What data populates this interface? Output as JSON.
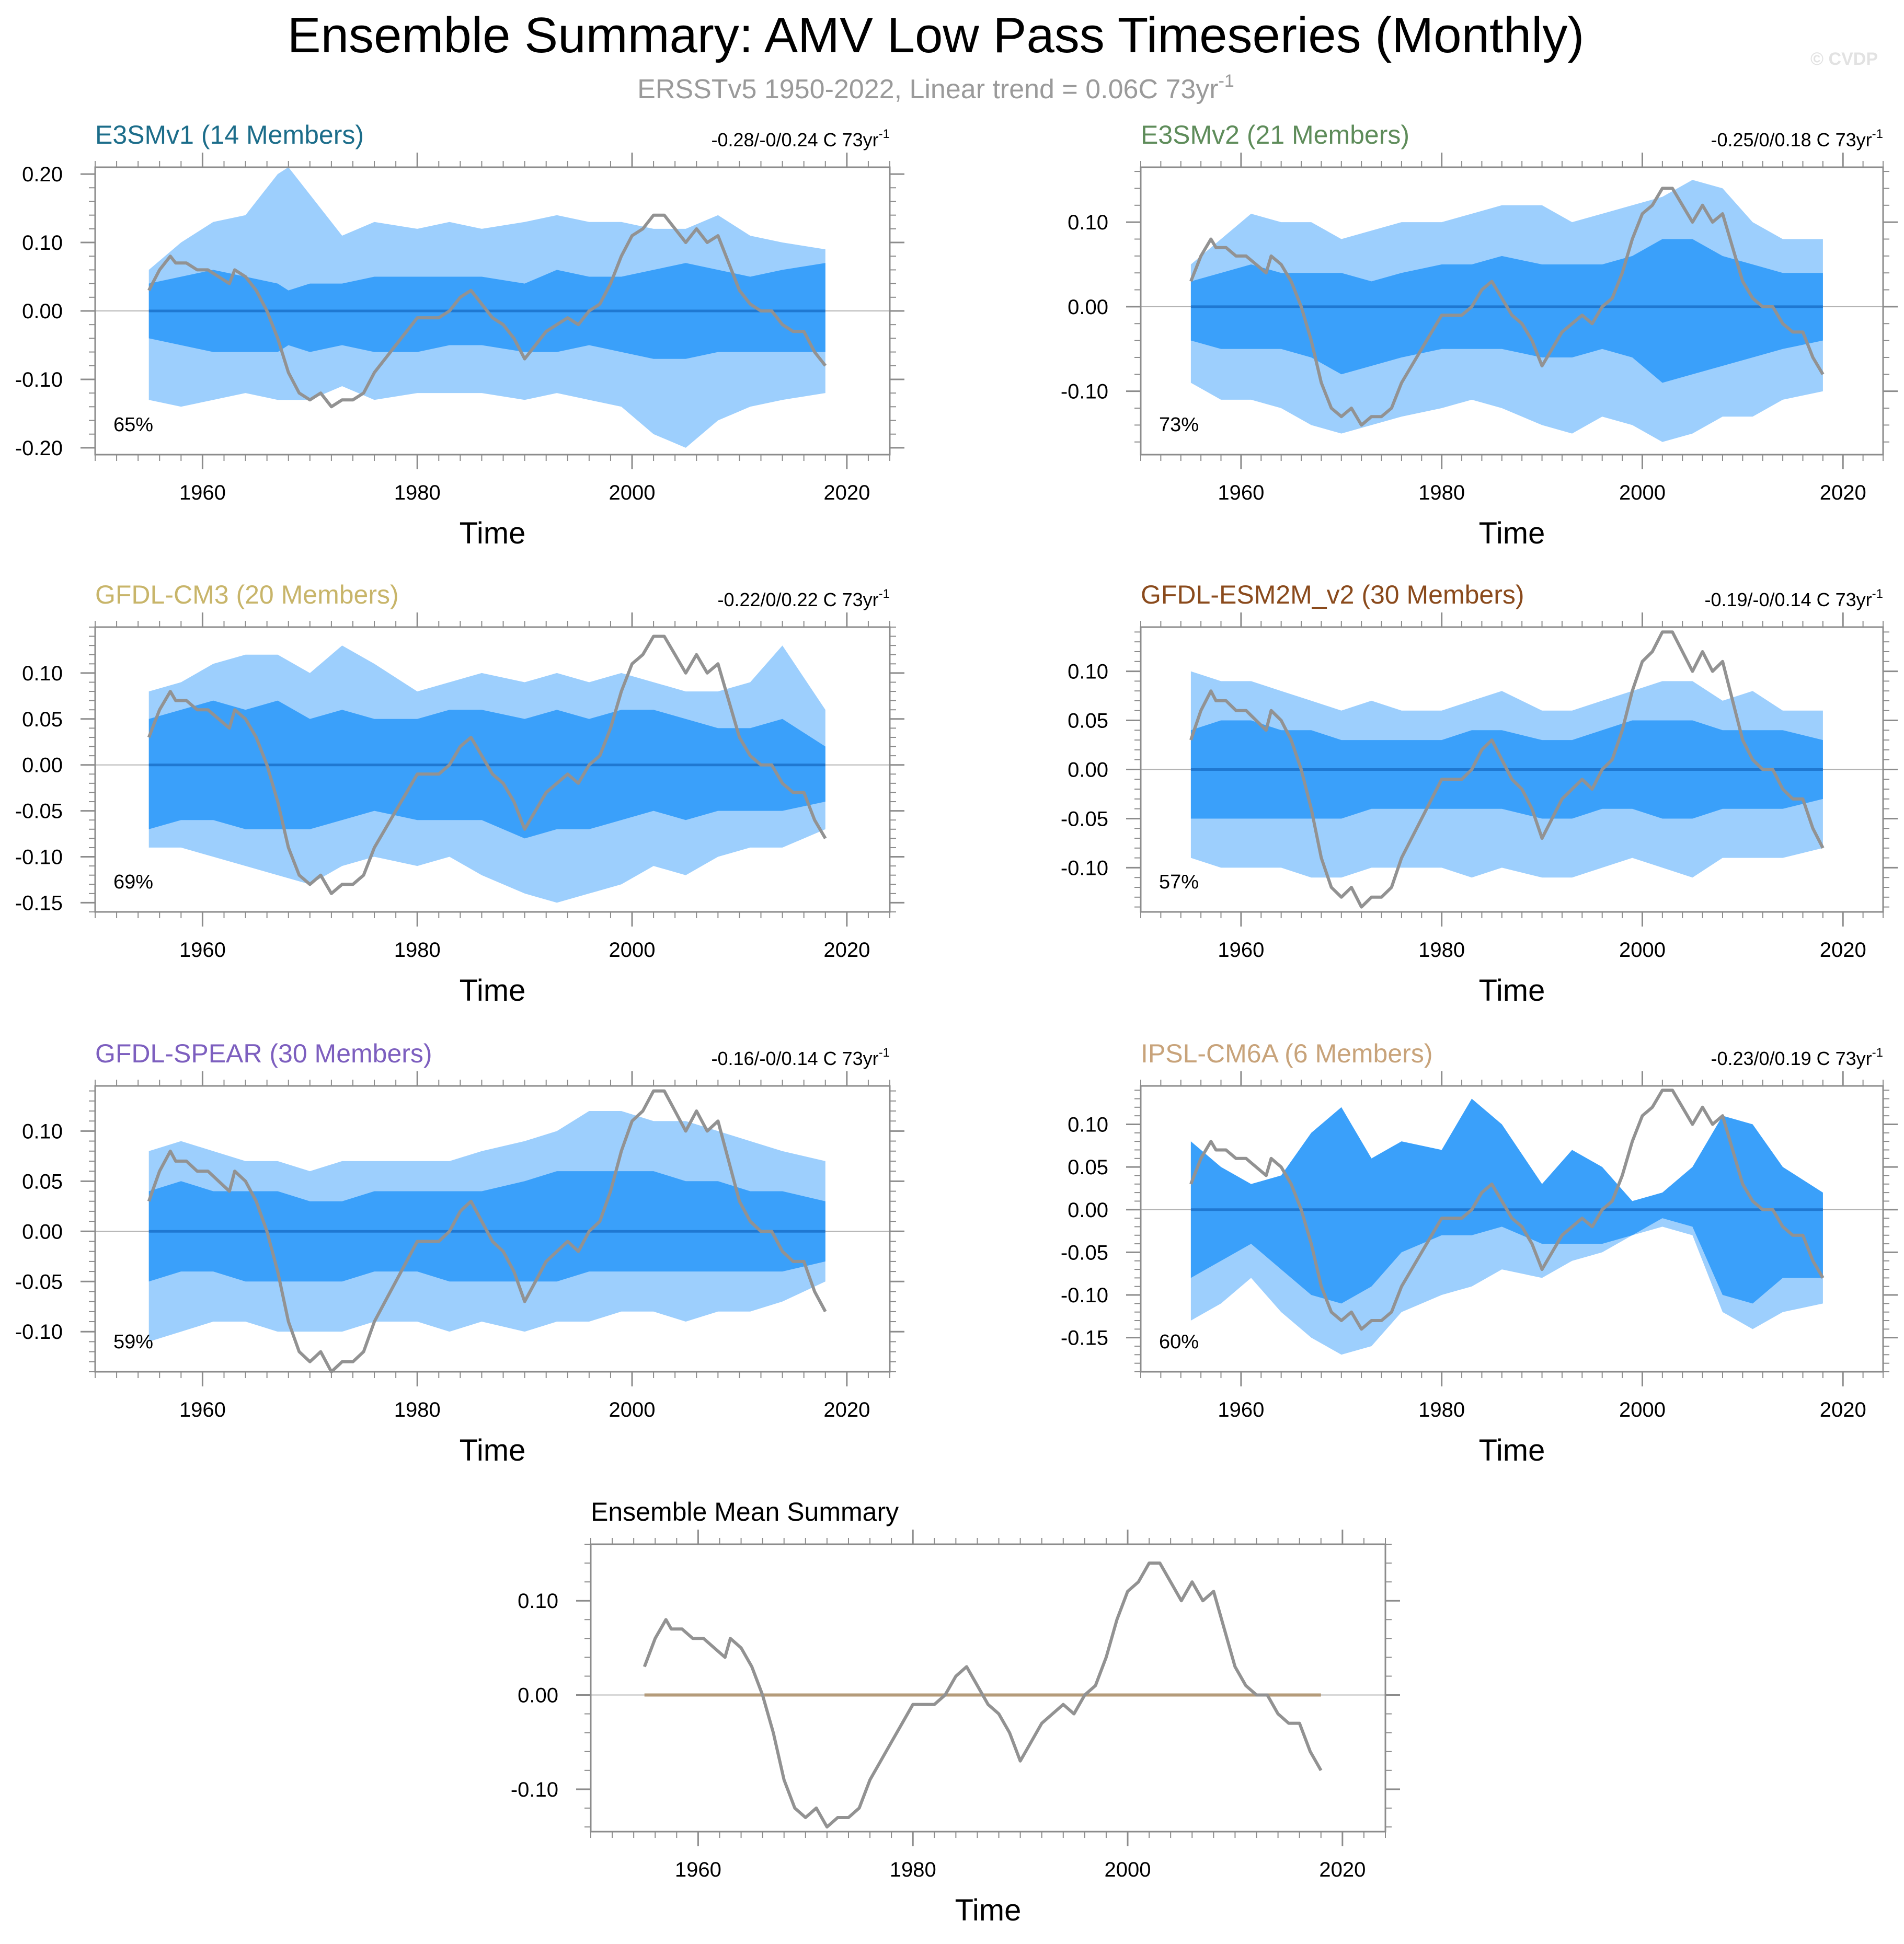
{
  "header": {
    "title": "Ensemble Summary: AMV Low Pass Timeseries (Monthly)",
    "subtitle_main": "ERSSTv5 1950-2022, Linear trend = 0.06C 73yr",
    "subtitle_sup": "-1",
    "watermark": "© CVDP"
  },
  "colors": {
    "band_outer": "#9dcffd",
    "band_inner": "#3aa0fa",
    "mean_line": "#1f78d1",
    "obs_line": "#929292",
    "summary_mean_line": "#b49b7a",
    "axis": "#8c8c8c",
    "zero_line": "#b4b4b4"
  },
  "chart_data": [
    {
      "type": "area",
      "id": "e3smv1",
      "title": "E3SMv1 (14 Members)",
      "title_color": "#1c6d8a",
      "trend_main": "-0.28/-0/0.24 C 73yr",
      "trend_sup": "-1",
      "percent": "65%",
      "xlabel": "Time",
      "xlim": [
        1950,
        2024
      ],
      "xticks": [
        "1960",
        "1980",
        "2000",
        "2020"
      ],
      "ylim": [
        -0.21,
        0.21
      ],
      "yticks": [
        "0.20",
        "0.10",
        "0.00",
        "-0.10",
        "-0.20"
      ],
      "ytick_values": [
        0.2,
        0.1,
        0.0,
        -0.1,
        -0.2
      ],
      "spread": {
        "x": [
          1955,
          1958,
          1961,
          1964,
          1967,
          1968,
          1970,
          1973,
          1976,
          1980,
          1983,
          1986,
          1990,
          1993,
          1996,
          1999,
          2002,
          2005,
          2008,
          2011,
          2014,
          2018
        ],
        "outer_upper": [
          0.06,
          0.1,
          0.13,
          0.14,
          0.2,
          0.21,
          0.17,
          0.11,
          0.13,
          0.12,
          0.13,
          0.12,
          0.13,
          0.14,
          0.13,
          0.13,
          0.12,
          0.12,
          0.14,
          0.11,
          0.1,
          0.09
        ],
        "inner_upper": [
          0.04,
          0.05,
          0.06,
          0.05,
          0.04,
          0.03,
          0.04,
          0.04,
          0.05,
          0.05,
          0.05,
          0.05,
          0.04,
          0.06,
          0.05,
          0.05,
          0.06,
          0.07,
          0.06,
          0.05,
          0.06,
          0.07
        ],
        "inner_lower": [
          -0.04,
          -0.05,
          -0.06,
          -0.06,
          -0.06,
          -0.05,
          -0.06,
          -0.05,
          -0.06,
          -0.06,
          -0.05,
          -0.05,
          -0.06,
          -0.06,
          -0.05,
          -0.06,
          -0.07,
          -0.07,
          -0.06,
          -0.06,
          -0.06,
          -0.06
        ],
        "outer_lower": [
          -0.13,
          -0.14,
          -0.13,
          -0.12,
          -0.13,
          -0.13,
          -0.13,
          -0.11,
          -0.13,
          -0.12,
          -0.12,
          -0.12,
          -0.13,
          -0.12,
          -0.13,
          -0.14,
          -0.18,
          -0.2,
          -0.16,
          -0.14,
          -0.13,
          -0.12
        ]
      }
    },
    {
      "type": "area",
      "id": "e3smv2",
      "title": "E3SMv2 (21 Members)",
      "title_color": "#5e8c5a",
      "trend_main": "-0.25/0/0.18 C 73yr",
      "trend_sup": "-1",
      "percent": "73%",
      "xlabel": "Time",
      "xlim": [
        1950,
        2024
      ],
      "xticks": [
        "1960",
        "1980",
        "2000",
        "2020"
      ],
      "ylim": [
        -0.175,
        0.165
      ],
      "yticks": [
        "0.10",
        "0.00",
        "-0.10"
      ],
      "ytick_values": [
        0.1,
        0.0,
        -0.1
      ],
      "spread": {
        "x": [
          1955,
          1958,
          1961,
          1964,
          1967,
          1970,
          1973,
          1976,
          1980,
          1983,
          1986,
          1990,
          1993,
          1996,
          1999,
          2002,
          2005,
          2008,
          2011,
          2014,
          2018
        ],
        "outer_upper": [
          0.05,
          0.08,
          0.11,
          0.1,
          0.1,
          0.08,
          0.09,
          0.1,
          0.1,
          0.11,
          0.12,
          0.12,
          0.1,
          0.11,
          0.12,
          0.13,
          0.15,
          0.14,
          0.1,
          0.08,
          0.08
        ],
        "inner_upper": [
          0.03,
          0.04,
          0.05,
          0.04,
          0.04,
          0.04,
          0.03,
          0.04,
          0.05,
          0.05,
          0.06,
          0.05,
          0.05,
          0.05,
          0.06,
          0.08,
          0.08,
          0.06,
          0.05,
          0.04,
          0.04
        ],
        "inner_lower": [
          -0.04,
          -0.05,
          -0.05,
          -0.05,
          -0.06,
          -0.08,
          -0.07,
          -0.06,
          -0.05,
          -0.05,
          -0.05,
          -0.06,
          -0.06,
          -0.05,
          -0.06,
          -0.09,
          -0.08,
          -0.07,
          -0.06,
          -0.05,
          -0.04
        ],
        "outer_lower": [
          -0.09,
          -0.11,
          -0.11,
          -0.12,
          -0.14,
          -0.15,
          -0.14,
          -0.13,
          -0.12,
          -0.11,
          -0.12,
          -0.14,
          -0.15,
          -0.13,
          -0.14,
          -0.16,
          -0.15,
          -0.13,
          -0.13,
          -0.11,
          -0.1
        ]
      }
    },
    {
      "type": "area",
      "id": "gfdl-cm3",
      "title": "GFDL-CM3 (20 Members)",
      "title_color": "#c8b56a",
      "trend_main": "-0.22/0/0.22 C 73yr",
      "trend_sup": "-1",
      "percent": "69%",
      "xlabel": "Time",
      "xlim": [
        1950,
        2024
      ],
      "xticks": [
        "1960",
        "1980",
        "2000",
        "2020"
      ],
      "ylim": [
        -0.16,
        0.15
      ],
      "yticks": [
        "0.10",
        "0.05",
        "0.00",
        "-0.05",
        "-0.10",
        "-0.15"
      ],
      "ytick_values": [
        0.1,
        0.05,
        0.0,
        -0.05,
        -0.1,
        -0.15
      ],
      "spread": {
        "x": [
          1955,
          1958,
          1961,
          1964,
          1967,
          1970,
          1973,
          1976,
          1980,
          1983,
          1986,
          1990,
          1993,
          1996,
          1999,
          2002,
          2005,
          2008,
          2011,
          2014,
          2018
        ],
        "outer_upper": [
          0.08,
          0.09,
          0.11,
          0.12,
          0.12,
          0.1,
          0.13,
          0.11,
          0.08,
          0.09,
          0.1,
          0.09,
          0.1,
          0.09,
          0.1,
          0.09,
          0.08,
          0.08,
          0.09,
          0.13,
          0.06
        ],
        "inner_upper": [
          0.05,
          0.06,
          0.07,
          0.06,
          0.07,
          0.05,
          0.06,
          0.05,
          0.05,
          0.06,
          0.06,
          0.05,
          0.06,
          0.05,
          0.06,
          0.06,
          0.05,
          0.04,
          0.04,
          0.05,
          0.02
        ],
        "inner_lower": [
          -0.07,
          -0.06,
          -0.06,
          -0.07,
          -0.07,
          -0.07,
          -0.06,
          -0.05,
          -0.06,
          -0.06,
          -0.06,
          -0.08,
          -0.07,
          -0.07,
          -0.06,
          -0.05,
          -0.06,
          -0.05,
          -0.05,
          -0.05,
          -0.04
        ],
        "outer_lower": [
          -0.09,
          -0.09,
          -0.1,
          -0.11,
          -0.12,
          -0.13,
          -0.11,
          -0.1,
          -0.11,
          -0.1,
          -0.12,
          -0.14,
          -0.15,
          -0.14,
          -0.13,
          -0.11,
          -0.12,
          -0.1,
          -0.09,
          -0.09,
          -0.07
        ]
      }
    },
    {
      "type": "area",
      "id": "gfdl-esm2m",
      "title": "GFDL-ESM2M_v2 (30 Members)",
      "title_color": "#8a4a1c",
      "trend_main": "-0.19/-0/0.14 C 73yr",
      "trend_sup": "-1",
      "percent": "57%",
      "xlabel": "Time",
      "xlim": [
        1950,
        2024
      ],
      "xticks": [
        "1960",
        "1980",
        "2000",
        "2020"
      ],
      "ylim": [
        -0.145,
        0.145
      ],
      "yticks": [
        "0.10",
        "0.05",
        "0.00",
        "-0.05",
        "-0.10"
      ],
      "ytick_values": [
        0.1,
        0.05,
        0.0,
        -0.05,
        -0.1
      ],
      "spread": {
        "x": [
          1955,
          1958,
          1961,
          1964,
          1967,
          1970,
          1973,
          1976,
          1980,
          1983,
          1986,
          1990,
          1993,
          1996,
          1999,
          2002,
          2005,
          2008,
          2011,
          2014,
          2018
        ],
        "outer_upper": [
          0.1,
          0.09,
          0.09,
          0.08,
          0.07,
          0.06,
          0.07,
          0.06,
          0.06,
          0.07,
          0.08,
          0.06,
          0.06,
          0.07,
          0.08,
          0.09,
          0.09,
          0.07,
          0.08,
          0.06,
          0.06
        ],
        "inner_upper": [
          0.04,
          0.05,
          0.05,
          0.04,
          0.04,
          0.03,
          0.03,
          0.03,
          0.03,
          0.04,
          0.04,
          0.03,
          0.03,
          0.04,
          0.05,
          0.05,
          0.05,
          0.04,
          0.04,
          0.04,
          0.03
        ],
        "inner_lower": [
          -0.05,
          -0.05,
          -0.05,
          -0.05,
          -0.05,
          -0.05,
          -0.04,
          -0.04,
          -0.04,
          -0.04,
          -0.04,
          -0.05,
          -0.05,
          -0.04,
          -0.04,
          -0.05,
          -0.05,
          -0.04,
          -0.04,
          -0.04,
          -0.03
        ],
        "outer_lower": [
          -0.09,
          -0.1,
          -0.1,
          -0.1,
          -0.11,
          -0.11,
          -0.1,
          -0.1,
          -0.1,
          -0.11,
          -0.1,
          -0.11,
          -0.11,
          -0.1,
          -0.09,
          -0.1,
          -0.11,
          -0.09,
          -0.09,
          -0.09,
          -0.08
        ]
      }
    },
    {
      "type": "area",
      "id": "gfdl-spear",
      "title": "GFDL-SPEAR (30 Members)",
      "title_color": "#7d5fbf",
      "trend_main": "-0.16/-0/0.14 C 73yr",
      "trend_sup": "-1",
      "percent": "59%",
      "xlabel": "Time",
      "xlim": [
        1950,
        2024
      ],
      "xticks": [
        "1960",
        "1980",
        "2000",
        "2020"
      ],
      "ylim": [
        -0.14,
        0.145
      ],
      "yticks": [
        "0.10",
        "0.05",
        "0.00",
        "-0.05",
        "-0.10"
      ],
      "ytick_values": [
        0.1,
        0.05,
        0.0,
        -0.05,
        -0.1
      ],
      "spread": {
        "x": [
          1955,
          1958,
          1961,
          1964,
          1967,
          1970,
          1973,
          1976,
          1980,
          1983,
          1986,
          1990,
          1993,
          1996,
          1999,
          2002,
          2005,
          2008,
          2011,
          2014,
          2018
        ],
        "outer_upper": [
          0.08,
          0.09,
          0.08,
          0.07,
          0.07,
          0.06,
          0.07,
          0.07,
          0.07,
          0.07,
          0.08,
          0.09,
          0.1,
          0.12,
          0.12,
          0.11,
          0.11,
          0.1,
          0.09,
          0.08,
          0.07
        ],
        "inner_upper": [
          0.04,
          0.05,
          0.04,
          0.04,
          0.04,
          0.03,
          0.03,
          0.04,
          0.04,
          0.04,
          0.04,
          0.05,
          0.06,
          0.06,
          0.06,
          0.06,
          0.05,
          0.05,
          0.04,
          0.04,
          0.03
        ],
        "inner_lower": [
          -0.05,
          -0.04,
          -0.04,
          -0.05,
          -0.05,
          -0.05,
          -0.05,
          -0.04,
          -0.04,
          -0.05,
          -0.05,
          -0.05,
          -0.05,
          -0.04,
          -0.04,
          -0.04,
          -0.04,
          -0.04,
          -0.04,
          -0.04,
          -0.03
        ],
        "outer_lower": [
          -0.11,
          -0.1,
          -0.09,
          -0.09,
          -0.1,
          -0.1,
          -0.1,
          -0.09,
          -0.09,
          -0.1,
          -0.09,
          -0.1,
          -0.09,
          -0.09,
          -0.08,
          -0.08,
          -0.09,
          -0.08,
          -0.08,
          -0.07,
          -0.05
        ]
      }
    },
    {
      "type": "area",
      "id": "ipsl-cm6a",
      "title": "IPSL-CM6A (6 Members)",
      "title_color": "#c8a37a",
      "trend_main": "-0.23/0/0.19 C 73yr",
      "trend_sup": "-1",
      "percent": "60%",
      "xlabel": "Time",
      "xlim": [
        1950,
        2024
      ],
      "xticks": [
        "1960",
        "1980",
        "2000",
        "2020"
      ],
      "ylim": [
        -0.19,
        0.145
      ],
      "yticks": [
        "0.10",
        "0.05",
        "0.00",
        "-0.05",
        "-0.10",
        "-0.15"
      ],
      "ytick_values": [
        0.1,
        0.05,
        0.0,
        -0.05,
        -0.1,
        -0.15
      ],
      "spread": {
        "x": [
          1955,
          1958,
          1961,
          1964,
          1967,
          1970,
          1973,
          1976,
          1980,
          1983,
          1986,
          1990,
          1993,
          1996,
          1999,
          2002,
          2005,
          2008,
          2011,
          2014,
          2018
        ],
        "outer_upper": [
          0.08,
          0.05,
          0.03,
          0.04,
          0.09,
          0.12,
          0.06,
          0.08,
          0.07,
          0.13,
          0.1,
          0.03,
          0.07,
          0.05,
          0.01,
          0.02,
          0.05,
          0.11,
          0.1,
          0.05,
          0.02
        ],
        "inner_upper": [
          0.08,
          0.05,
          0.03,
          0.04,
          0.09,
          0.12,
          0.06,
          0.08,
          0.07,
          0.13,
          0.1,
          0.03,
          0.07,
          0.05,
          0.01,
          0.02,
          0.05,
          0.11,
          0.1,
          0.05,
          0.02
        ],
        "inner_lower": [
          -0.08,
          -0.06,
          -0.04,
          -0.07,
          -0.1,
          -0.11,
          -0.09,
          -0.05,
          -0.03,
          -0.03,
          -0.02,
          -0.04,
          -0.04,
          -0.04,
          -0.03,
          -0.01,
          -0.02,
          -0.1,
          -0.11,
          -0.08,
          -0.08
        ],
        "outer_lower": [
          -0.13,
          -0.11,
          -0.08,
          -0.12,
          -0.15,
          -0.17,
          -0.16,
          -0.12,
          -0.1,
          -0.09,
          -0.07,
          -0.08,
          -0.06,
          -0.05,
          -0.03,
          -0.02,
          -0.03,
          -0.12,
          -0.14,
          -0.12,
          -0.11
        ]
      }
    },
    {
      "type": "line",
      "id": "ensemble-mean",
      "title": "Ensemble Mean Summary",
      "title_color": "#000000",
      "xlabel": "Time",
      "xlim": [
        1950,
        2024
      ],
      "xticks": [
        "1960",
        "1980",
        "2000",
        "2020"
      ],
      "ylim": [
        -0.145,
        0.16
      ],
      "yticks": [
        "0.10",
        "0.00",
        "-0.10"
      ],
      "ytick_values": [
        0.1,
        0.0,
        -0.1
      ],
      "series": [
        {
          "name": "ensemble means",
          "x": [
            1955,
            2018
          ],
          "values": [
            0.0,
            0.0
          ]
        }
      ]
    }
  ],
  "observed_series": {
    "name": "ERSSTv5 observed AMV",
    "x": [
      1955.0,
      1956.0,
      1957.0,
      1957.5,
      1958.5,
      1959.5,
      1960.5,
      1961.5,
      1962.5,
      1963.0,
      1964.0,
      1965.0,
      1966.0,
      1967.0,
      1968.0,
      1969.0,
      1970.0,
      1971.0,
      1972.0,
      1973.0,
      1974.0,
      1975.0,
      1976.0,
      1977.0,
      1978.0,
      1979.0,
      1980.0,
      1981.0,
      1982.0,
      1983.0,
      1984.0,
      1985.0,
      1986.0,
      1987.0,
      1988.0,
      1989.0,
      1990.0,
      1991.0,
      1992.0,
      1993.0,
      1994.0,
      1995.0,
      1996.0,
      1997.0,
      1998.0,
      1999.0,
      2000.0,
      2001.0,
      2002.0,
      2003.0,
      2004.0,
      2005.0,
      2006.0,
      2007.0,
      2008.0,
      2009.0,
      2010.0,
      2011.0,
      2012.0,
      2013.0,
      2014.0,
      2015.0,
      2016.0,
      2017.0,
      2018.0
    ],
    "values": [
      0.03,
      0.06,
      0.08,
      0.07,
      0.07,
      0.06,
      0.06,
      0.05,
      0.04,
      0.06,
      0.05,
      0.03,
      0.0,
      -0.04,
      -0.09,
      -0.12,
      -0.13,
      -0.12,
      -0.14,
      -0.13,
      -0.13,
      -0.12,
      -0.09,
      -0.07,
      -0.05,
      -0.03,
      -0.01,
      -0.01,
      -0.01,
      0.0,
      0.02,
      0.03,
      0.01,
      -0.01,
      -0.02,
      -0.04,
      -0.07,
      -0.05,
      -0.03,
      -0.02,
      -0.01,
      -0.02,
      0.0,
      0.01,
      0.04,
      0.08,
      0.11,
      0.12,
      0.14,
      0.14,
      0.12,
      0.1,
      0.12,
      0.1,
      0.11,
      0.07,
      0.03,
      0.01,
      0.0,
      0.0,
      -0.02,
      -0.03,
      -0.03,
      -0.06,
      -0.08
    ]
  }
}
